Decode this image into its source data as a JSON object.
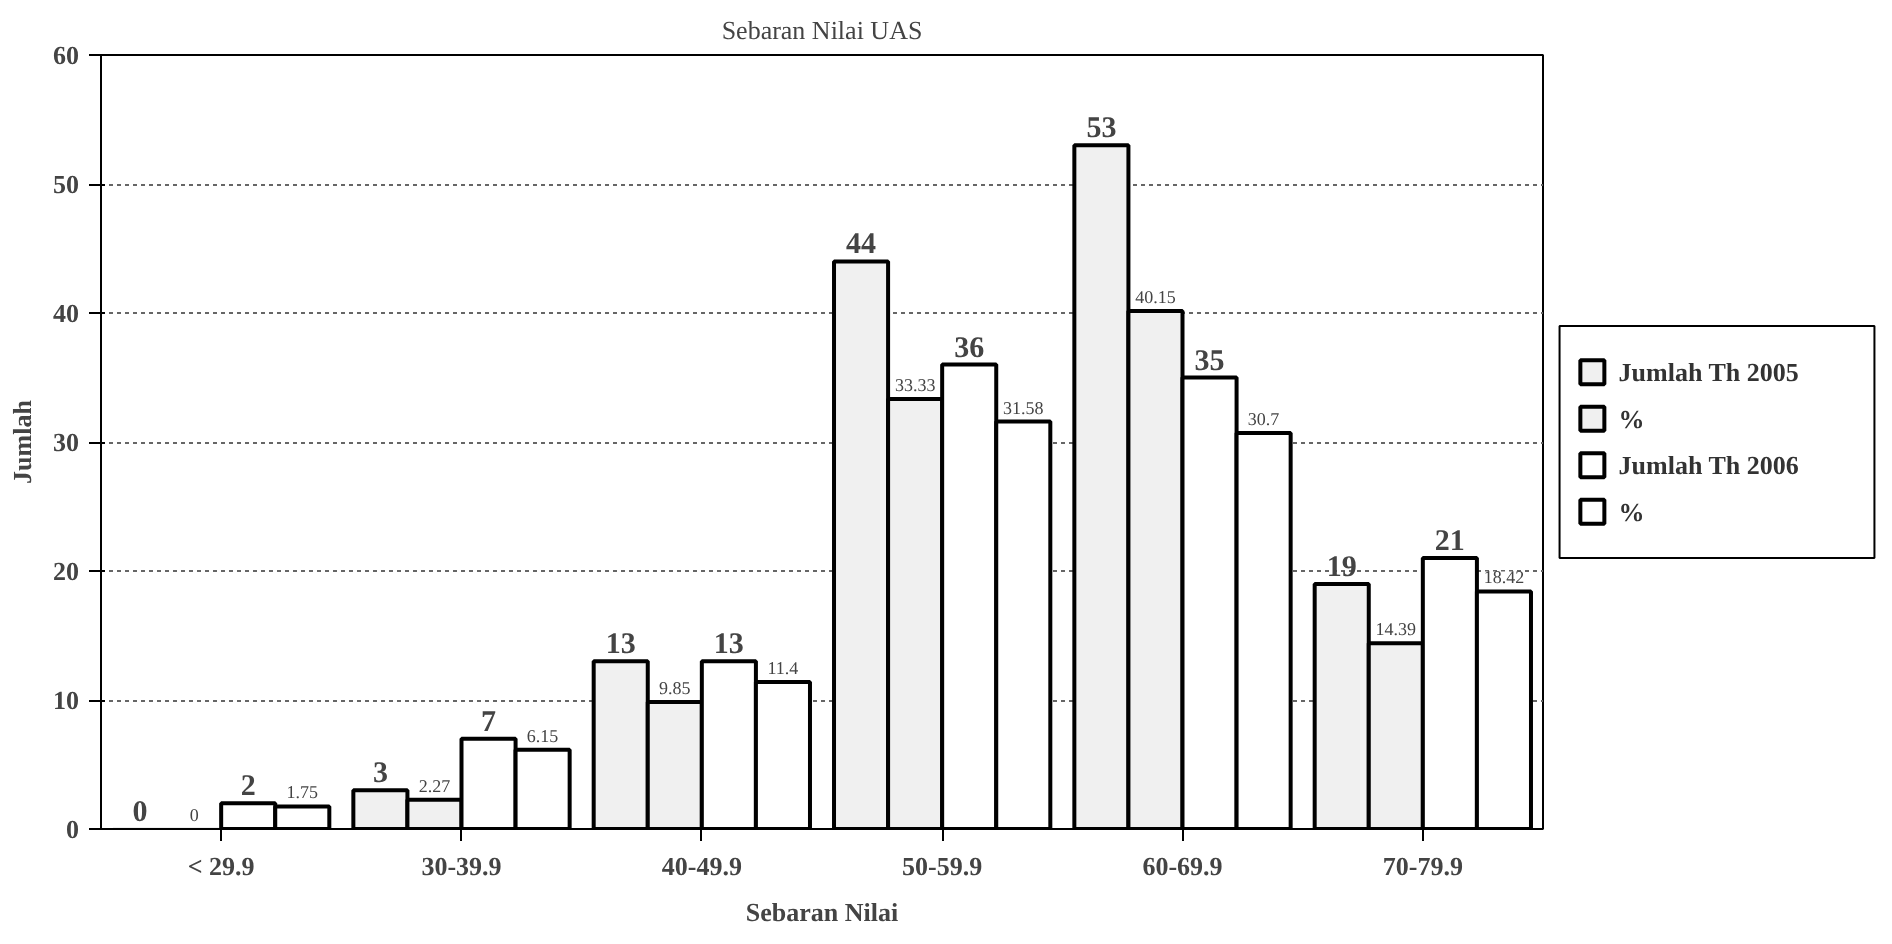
{
  "chart_data": {
    "type": "bar",
    "title": "Sebaran Nilai UAS",
    "xlabel": "Sebaran Nilai",
    "ylabel": "Jumlah",
    "categories": [
      "< 29.9",
      "30-39.9",
      "40-49.9",
      "50-59.9",
      "60-69.9",
      "70-79.9"
    ],
    "series": [
      {
        "name": "Jumlah Th 2005",
        "color": "#f0f0f0",
        "values": [
          0,
          3,
          13,
          44,
          53,
          19
        ]
      },
      {
        "name": "%",
        "color": "#f0f0f0",
        "values": [
          0,
          2.27,
          9.85,
          33.33,
          40.15,
          14.39
        ]
      },
      {
        "name": "Jumlah Th 2006",
        "color": "#ffffff",
        "values": [
          2,
          7,
          13,
          36,
          35,
          21
        ]
      },
      {
        "name": "%",
        "color": "#ffffff",
        "values": [
          1.75,
          6.15,
          11.4,
          31.58,
          30.7,
          18.42
        ]
      }
    ],
    "ylim": [
      0,
      60
    ],
    "yticks": [
      0,
      10,
      20,
      30,
      40,
      50,
      60
    ],
    "grid": "y",
    "legend": "right",
    "data_labels": true
  }
}
